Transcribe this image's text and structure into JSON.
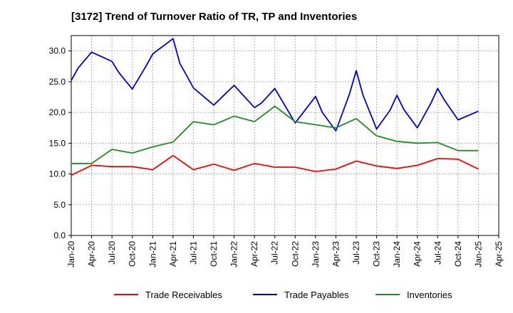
{
  "chart_data": {
    "type": "line",
    "title": "[3172]  Trend of Turnover Ratio of TR, TP and Inventories",
    "xlabel": "",
    "ylabel": "",
    "ylim": [
      0,
      32.5
    ],
    "yticks": [
      "0.0",
      "5.0",
      "10.0",
      "15.0",
      "20.0",
      "25.0",
      "30.0"
    ],
    "xtick_labels": [
      "Jan-20",
      "Apr-20",
      "Jul-20",
      "Oct-20",
      "Jan-21",
      "Apr-21",
      "Jul-21",
      "Oct-21",
      "Jan-22",
      "Apr-22",
      "Jul-22",
      "Oct-22",
      "Jan-23",
      "Apr-23",
      "Jul-23",
      "Oct-23",
      "Jan-24",
      "Apr-24",
      "Jul-24",
      "Oct-24",
      "Jan-25",
      "Apr-25"
    ],
    "grid": true,
    "legend_position": "bottom",
    "series": [
      {
        "name": "Trade Receivables",
        "color": "#ff0000",
        "x": [
          "Jan-20",
          "Apr-20",
          "Jul-20",
          "Oct-20",
          "Jan-21",
          "Apr-21",
          "Jul-21",
          "Oct-21",
          "Jan-22",
          "Apr-22",
          "Jul-22",
          "Oct-22",
          "Jan-23",
          "Apr-23",
          "Jul-23",
          "Oct-23",
          "Jan-24",
          "Apr-24",
          "Jul-24",
          "Oct-24",
          "Jan-25"
        ],
        "values": [
          9.8,
          11.4,
          11.2,
          11.2,
          10.7,
          13.0,
          10.7,
          11.6,
          10.6,
          11.7,
          11.1,
          11.1,
          10.4,
          10.8,
          12.1,
          11.3,
          10.9,
          11.4,
          12.5,
          12.4,
          10.8
        ]
      },
      {
        "name": "Trade Payables",
        "color": "#0000cc",
        "x": [
          "Jan-20",
          "Feb-20",
          "Apr-20",
          "Jul-20",
          "Aug-20",
          "Oct-20",
          "Dec-20",
          "Jan-21",
          "Apr-21",
          "May-21",
          "Jul-21",
          "Oct-21",
          "Jan-22",
          "Apr-22",
          "May-22",
          "Jul-22",
          "Oct-22",
          "Jan-23",
          "Feb-23",
          "Apr-23",
          "Jun-23",
          "Jul-23",
          "Aug-23",
          "Oct-23",
          "Dec-23",
          "Jan-24",
          "Feb-24",
          "Apr-24",
          "Jun-24",
          "Jul-24",
          "Aug-24",
          "Oct-24",
          "Jan-25"
        ],
        "values": [
          25.2,
          27.2,
          29.8,
          28.3,
          26.5,
          23.8,
          27.5,
          29.5,
          32.0,
          28.0,
          24.0,
          21.2,
          24.4,
          20.8,
          21.5,
          23.9,
          18.3,
          22.6,
          20.0,
          17.0,
          23.0,
          26.8,
          22.8,
          17.3,
          20.4,
          22.8,
          20.5,
          17.5,
          21.5,
          23.9,
          22.0,
          18.8,
          20.2
        ]
      },
      {
        "name": "Inventories",
        "color": "#228b22",
        "x": [
          "Jan-20",
          "Apr-20",
          "Jul-20",
          "Oct-20",
          "Jan-21",
          "Apr-21",
          "Jul-21",
          "Oct-21",
          "Jan-22",
          "Apr-22",
          "Jul-22",
          "Oct-22",
          "Jan-23",
          "Apr-23",
          "Jul-23",
          "Oct-23",
          "Jan-24",
          "Apr-24",
          "Jul-24",
          "Oct-24",
          "Jan-25"
        ],
        "values": [
          11.7,
          11.7,
          14.0,
          13.4,
          14.4,
          15.2,
          18.5,
          18.0,
          19.4,
          18.5,
          21.0,
          18.5,
          18.0,
          17.5,
          19.0,
          16.2,
          15.3,
          15.0,
          15.1,
          13.8,
          13.8
        ]
      }
    ]
  }
}
